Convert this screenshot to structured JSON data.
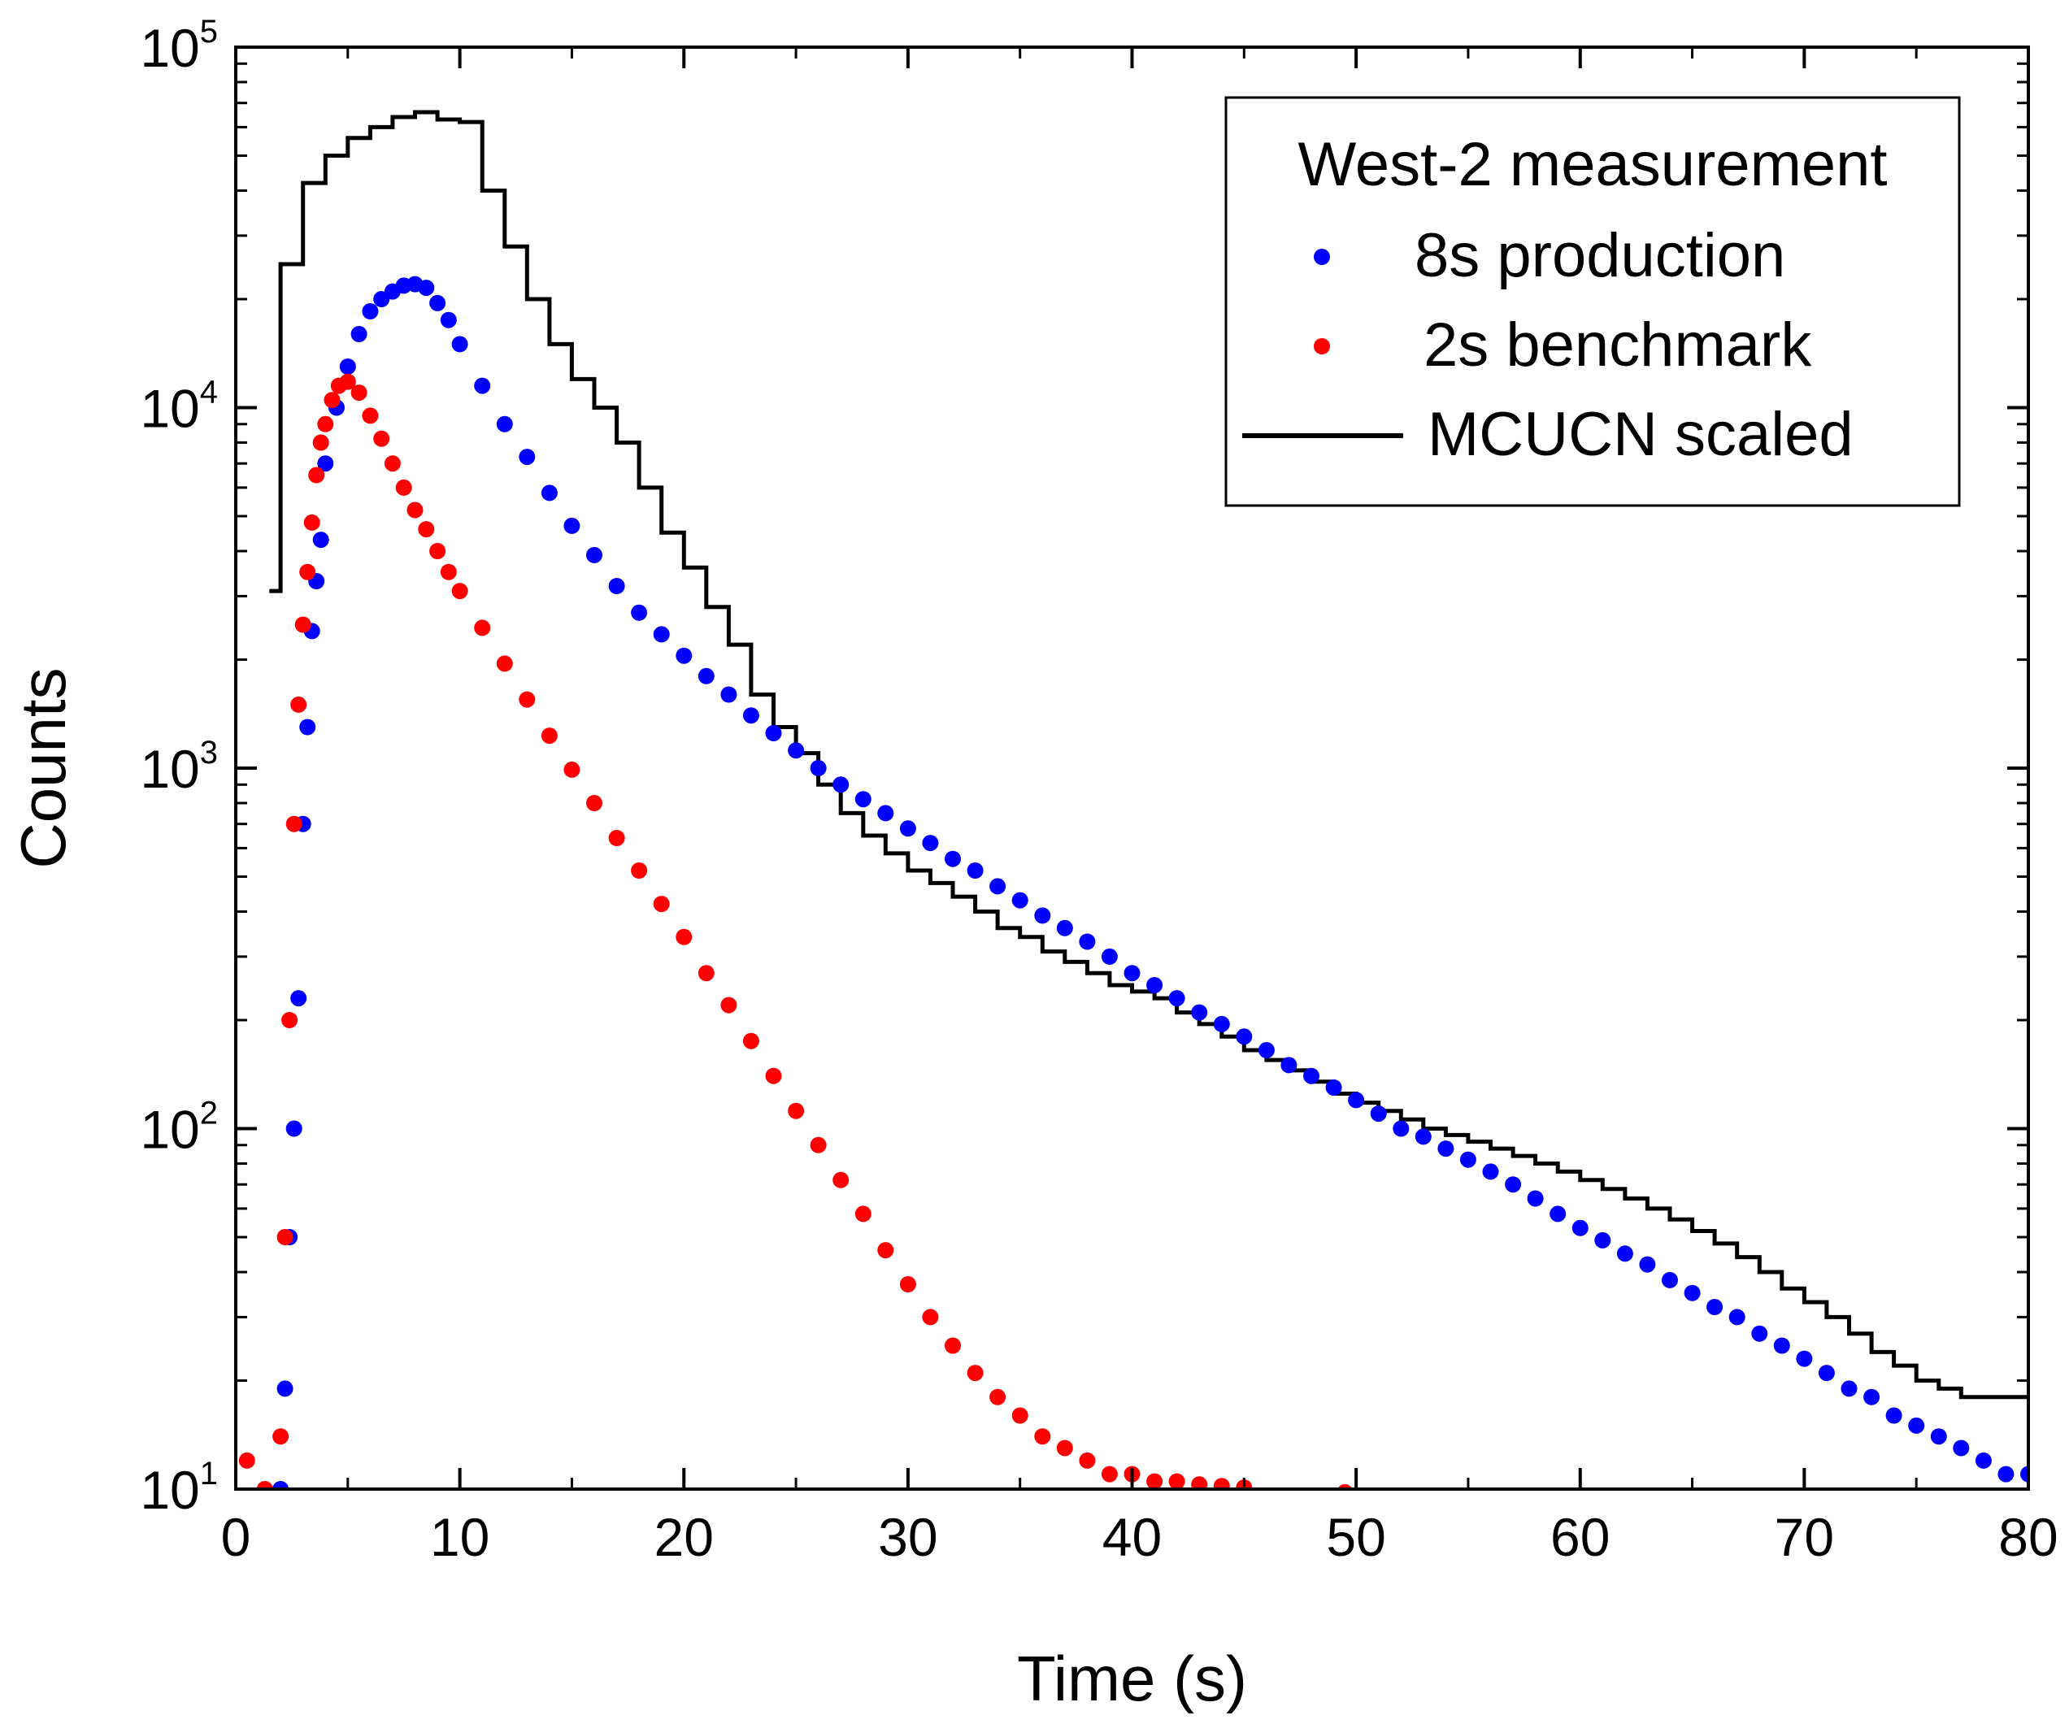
{
  "chart_data": {
    "type": "scatter",
    "title": "",
    "xlabel": "Time (s)",
    "ylabel": "Counts",
    "xlim": [
      0,
      80
    ],
    "ylim": [
      10,
      100000
    ],
    "yscale": "log",
    "x_ticks": [
      0,
      10,
      20,
      30,
      40,
      50,
      60,
      70,
      80
    ],
    "x_tick_labels": [
      "0",
      "10",
      "20",
      "30",
      "40",
      "50",
      "60",
      "70",
      "80"
    ],
    "y_ticks": [
      {
        "value": 10,
        "base": "10",
        "exp": "1"
      },
      {
        "value": 100,
        "base": "10",
        "exp": "2"
      },
      {
        "value": 1000,
        "base": "10",
        "exp": "3"
      },
      {
        "value": 10000,
        "base": "10",
        "exp": "4"
      },
      {
        "value": 100000,
        "base": "10",
        "exp": "5"
      }
    ],
    "grid": false,
    "legend": {
      "position": "top-right",
      "title": "West-2 measurement",
      "entries": [
        {
          "label": "8s production",
          "marker": "dot",
          "color": "#0000ff"
        },
        {
          "label": "2s benchmark",
          "marker": "dot",
          "color": "#ff0000"
        },
        {
          "label": "MCUCN scaled",
          "marker": "line",
          "color": "#000000"
        }
      ]
    },
    "series": [
      {
        "name": "8s production",
        "kind": "scatter",
        "color": "#0000ff",
        "x": [
          2,
          2.2,
          2.4,
          2.6,
          2.8,
          3,
          3.2,
          3.4,
          3.6,
          3.8,
          4,
          4.5,
          5,
          5.5,
          6,
          6.5,
          7,
          7.5,
          8,
          8.5,
          9,
          9.5,
          10,
          11,
          12,
          13,
          14,
          15,
          16,
          17,
          18,
          19,
          20,
          21,
          22,
          23,
          24,
          25,
          26,
          27,
          28,
          29,
          30,
          31,
          32,
          33,
          34,
          35,
          36,
          37,
          38,
          39,
          40,
          41,
          42,
          43,
          44,
          45,
          46,
          47,
          48,
          49,
          50,
          51,
          52,
          53,
          54,
          55,
          56,
          57,
          58,
          59,
          60,
          61,
          62,
          63,
          64,
          65,
          66,
          67,
          68,
          69,
          70,
          71,
          72,
          73,
          74,
          75,
          76,
          77,
          78,
          79,
          80
        ],
        "y": [
          10,
          19,
          50,
          100,
          230,
          700,
          1300,
          2400,
          3300,
          4300,
          7000,
          10000,
          13000,
          16000,
          18500,
          20000,
          21000,
          21800,
          22000,
          21500,
          19500,
          17500,
          15000,
          11500,
          9000,
          7300,
          5800,
          4700,
          3900,
          3200,
          2700,
          2350,
          2050,
          1800,
          1600,
          1400,
          1250,
          1120,
          1000,
          900,
          820,
          750,
          680,
          620,
          560,
          520,
          470,
          430,
          390,
          360,
          330,
          300,
          270,
          250,
          230,
          210,
          195,
          180,
          165,
          150,
          140,
          130,
          120,
          110,
          100,
          95,
          88,
          82,
          76,
          70,
          64,
          58,
          53,
          49,
          45,
          42,
          38,
          35,
          32,
          30,
          27,
          25,
          23,
          21,
          19,
          18,
          16,
          15,
          14,
          13,
          12,
          11,
          11
        ]
      },
      {
        "name": "2s benchmark",
        "kind": "scatter",
        "color": "#ff0000",
        "x": [
          0.5,
          1.3,
          2,
          2.2,
          2.4,
          2.6,
          2.8,
          3,
          3.2,
          3.4,
          3.6,
          3.8,
          4,
          4.3,
          4.6,
          5,
          5.5,
          6,
          6.5,
          7,
          7.5,
          8,
          8.5,
          9,
          9.5,
          10,
          11,
          12,
          13,
          14,
          15,
          16,
          17,
          18,
          19,
          20,
          21,
          22,
          23,
          24,
          25,
          26,
          27,
          28,
          29,
          30,
          31,
          32,
          33,
          34,
          35,
          36,
          37,
          38,
          39,
          40,
          41,
          42,
          43,
          44,
          45,
          49.5
        ],
        "y": [
          12,
          10,
          14,
          50,
          200,
          700,
          1500,
          2500,
          3500,
          4800,
          6500,
          8000,
          9000,
          10500,
          11500,
          11800,
          11000,
          9500,
          8200,
          7000,
          6000,
          5200,
          4600,
          4000,
          3500,
          3100,
          2450,
          1950,
          1550,
          1230,
          990,
          800,
          640,
          520,
          420,
          340,
          270,
          220,
          175,
          140,
          112,
          90,
          72,
          58,
          46,
          37,
          30,
          25,
          21,
          18,
          16,
          14,
          13,
          12,
          11,
          11,
          10.5,
          10.5,
          10.3,
          10.2,
          10.1,
          9.8
        ]
      },
      {
        "name": "MCUCN scaled",
        "kind": "step",
        "color": "#000000",
        "edges": [
          1.5,
          2,
          3,
          4,
          5,
          6,
          7,
          8,
          9,
          10,
          11,
          12,
          13,
          14,
          15,
          16,
          17,
          18,
          19,
          20,
          21,
          22,
          23,
          24,
          25,
          26,
          27,
          28,
          29,
          30,
          31,
          32,
          33,
          34,
          35,
          36,
          37,
          38,
          39,
          40,
          41,
          42,
          43,
          44,
          45,
          46,
          47,
          48,
          49,
          50,
          51,
          52,
          53,
          54,
          55,
          56,
          57,
          58,
          59,
          60,
          61,
          62,
          63,
          64,
          65,
          66,
          67,
          68,
          69,
          70,
          71,
          72,
          73,
          74,
          75,
          76,
          77,
          78,
          79,
          80
        ],
        "values": [
          3100,
          25000,
          42000,
          50000,
          56000,
          60000,
          64000,
          66000,
          63000,
          62000,
          40000,
          28000,
          20000,
          15000,
          12000,
          10000,
          8000,
          6000,
          4500,
          3600,
          2800,
          2200,
          1600,
          1300,
          1100,
          900,
          750,
          650,
          580,
          520,
          480,
          440,
          400,
          360,
          340,
          310,
          290,
          270,
          250,
          240,
          230,
          210,
          195,
          180,
          165,
          155,
          145,
          135,
          125,
          118,
          112,
          106,
          100,
          96,
          92,
          88,
          84,
          80,
          76,
          72,
          68,
          64,
          60,
          56,
          52,
          48,
          44,
          40,
          36,
          33,
          30,
          27,
          24,
          22,
          20,
          19,
          18,
          18,
          18
        ]
      }
    ]
  }
}
